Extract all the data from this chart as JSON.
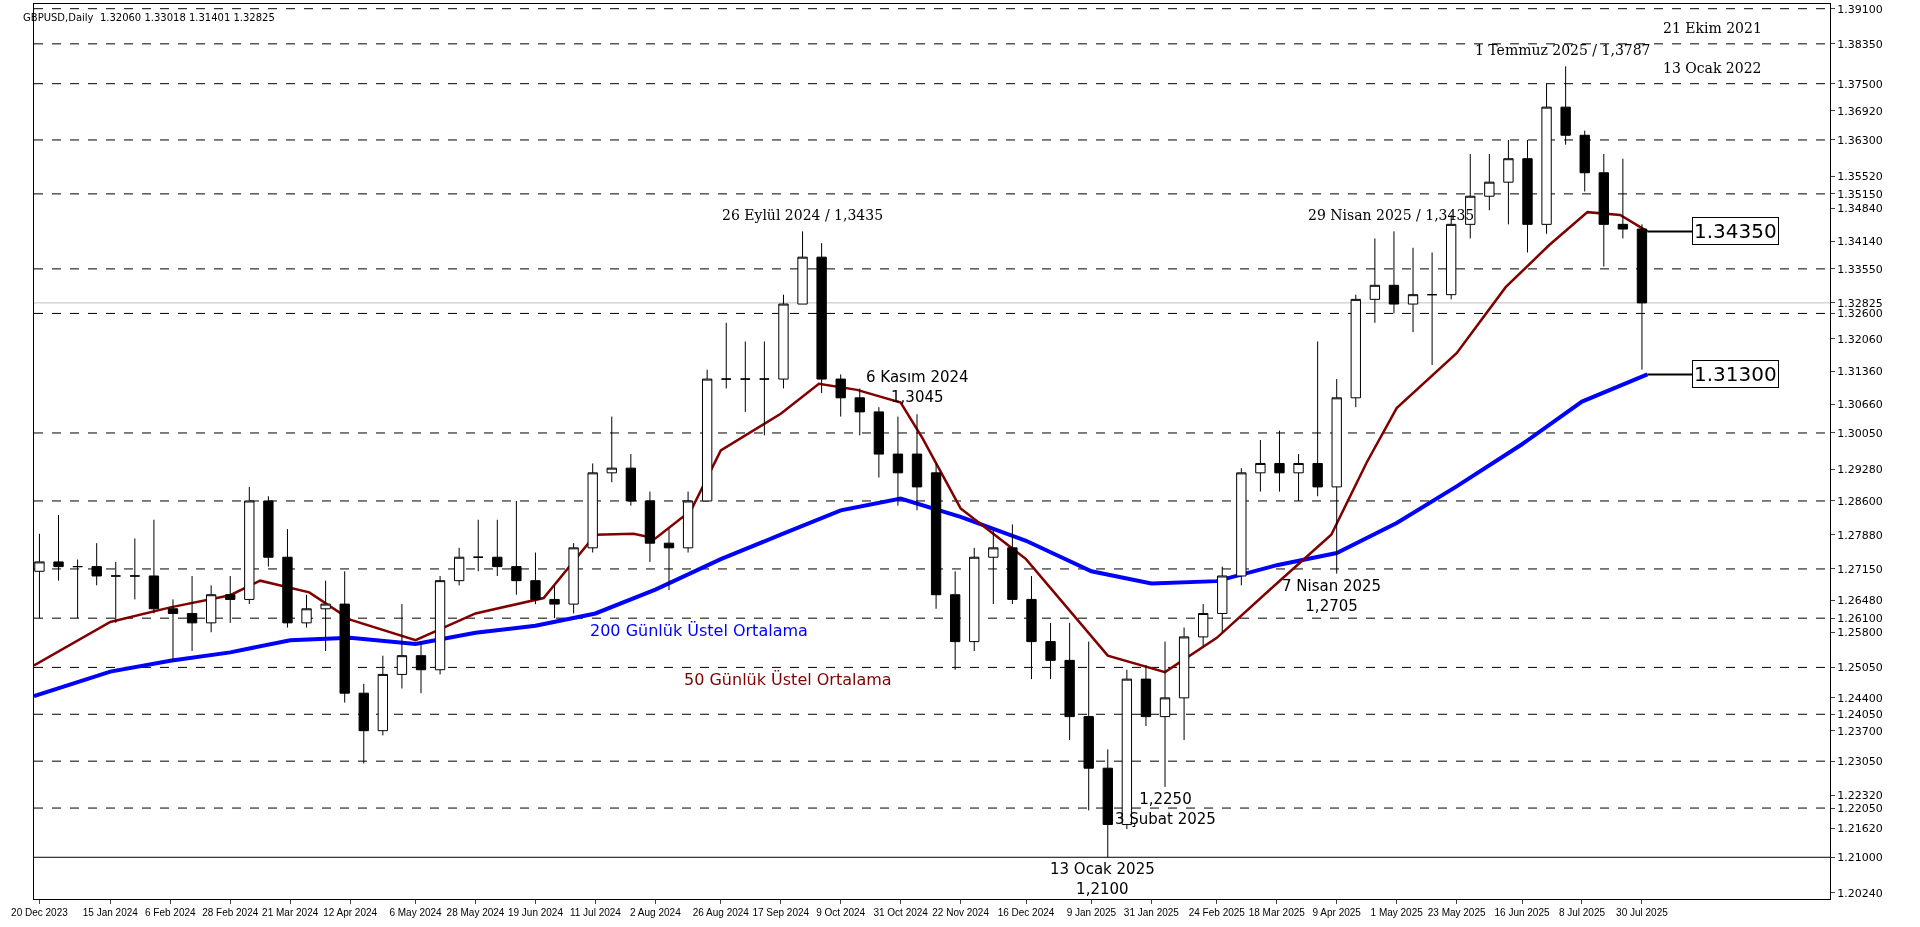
{
  "chart_data": {
    "type": "candlestick",
    "title": "GBPUSD,Daily  1.32060 1.33018 1.31401 1.32825",
    "x": [
      "2023-12-20",
      "2023-12-27",
      "2024-01-03",
      "2024-01-10",
      "2024-01-17",
      "2024-01-24",
      "2024-01-31",
      "2024-02-07",
      "2024-02-14",
      "2024-02-21",
      "2024-02-28",
      "2024-03-06",
      "2024-03-13",
      "2024-03-20",
      "2024-03-27",
      "2024-04-03",
      "2024-04-10",
      "2024-04-17",
      "2024-04-24",
      "2024-05-01",
      "2024-05-08",
      "2024-05-15",
      "2024-05-22",
      "2024-05-29",
      "2024-06-05",
      "2024-06-12",
      "2024-06-19",
      "2024-06-26",
      "2024-07-03",
      "2024-07-10",
      "2024-07-17",
      "2024-07-24",
      "2024-07-31",
      "2024-08-07",
      "2024-08-14",
      "2024-08-21",
      "2024-08-28",
      "2024-09-04",
      "2024-09-11",
      "2024-09-18",
      "2024-09-25",
      "2024-10-02",
      "2024-10-09",
      "2024-10-16",
      "2024-10-23",
      "2024-10-30",
      "2024-11-06",
      "2024-11-13",
      "2024-11-20",
      "2024-11-27",
      "2024-12-04",
      "2024-12-11",
      "2024-12-18",
      "2024-12-25",
      "2025-01-01",
      "2025-01-08",
      "2025-01-15",
      "2025-01-22",
      "2025-01-29",
      "2025-02-05",
      "2025-02-12",
      "2025-02-19",
      "2025-02-26",
      "2025-03-05",
      "2025-03-12",
      "2025-03-19",
      "2025-03-26",
      "2025-04-02",
      "2025-04-09",
      "2025-04-16",
      "2025-04-23",
      "2025-04-30",
      "2025-05-07",
      "2025-05-14",
      "2025-05-21",
      "2025-05-28",
      "2025-06-04",
      "2025-06-11",
      "2025-06-18",
      "2025-06-25",
      "2025-07-02",
      "2025-07-09",
      "2025-07-16",
      "2025-07-23",
      "2025-07-30"
    ],
    "ohlc": [
      [
        1.271,
        1.279,
        1.261,
        1.273
      ],
      [
        1.273,
        1.283,
        1.269,
        1.272
      ],
      [
        1.272,
        1.2735,
        1.261,
        1.272
      ],
      [
        1.272,
        1.277,
        1.268,
        1.27
      ],
      [
        1.27,
        1.273,
        1.26,
        1.27
      ],
      [
        1.27,
        1.278,
        1.265,
        1.27
      ],
      [
        1.27,
        1.282,
        1.262,
        1.263
      ],
      [
        1.263,
        1.265,
        1.252,
        1.262
      ],
      [
        1.262,
        1.27,
        1.254,
        1.26
      ],
      [
        1.26,
        1.268,
        1.258,
        1.266
      ],
      [
        1.266,
        1.27,
        1.26,
        1.265
      ],
      [
        1.265,
        1.289,
        1.264,
        1.286
      ],
      [
        1.286,
        1.287,
        1.272,
        1.274
      ],
      [
        1.274,
        1.28,
        1.259,
        1.26
      ],
      [
        1.26,
        1.266,
        1.259,
        1.263
      ],
      [
        1.263,
        1.269,
        1.254,
        1.264
      ],
      [
        1.264,
        1.271,
        1.243,
        1.245
      ],
      [
        1.245,
        1.247,
        1.23,
        1.237
      ],
      [
        1.237,
        1.253,
        1.236,
        1.249
      ],
      [
        1.249,
        1.264,
        1.246,
        1.253
      ],
      [
        1.253,
        1.256,
        1.245,
        1.25
      ],
      [
        1.25,
        1.27,
        1.249,
        1.269
      ],
      [
        1.269,
        1.276,
        1.268,
        1.274
      ],
      [
        1.274,
        1.282,
        1.271,
        1.274
      ],
      [
        1.274,
        1.282,
        1.27,
        1.272
      ],
      [
        1.272,
        1.286,
        1.266,
        1.269
      ],
      [
        1.269,
        1.275,
        1.264,
        1.265
      ],
      [
        1.265,
        1.268,
        1.261,
        1.264
      ],
      [
        1.264,
        1.277,
        1.262,
        1.276
      ],
      [
        1.276,
        1.294,
        1.275,
        1.292
      ],
      [
        1.292,
        1.304,
        1.29,
        1.293
      ],
      [
        1.293,
        1.296,
        1.285,
        1.286
      ],
      [
        1.286,
        1.288,
        1.273,
        1.277
      ],
      [
        1.277,
        1.28,
        1.267,
        1.276
      ],
      [
        1.276,
        1.288,
        1.275,
        1.286
      ],
      [
        1.286,
        1.314,
        1.286,
        1.312
      ],
      [
        1.312,
        1.324,
        1.31,
        1.312
      ],
      [
        1.312,
        1.32,
        1.305,
        1.312
      ],
      [
        1.312,
        1.32,
        1.3,
        1.312
      ],
      [
        1.312,
        1.33,
        1.31,
        1.328
      ],
      [
        1.328,
        1.3435,
        1.328,
        1.338
      ],
      [
        1.338,
        1.341,
        1.309,
        1.312
      ],
      [
        1.312,
        1.313,
        1.304,
        1.308
      ],
      [
        1.308,
        1.31,
        1.3,
        1.305
      ],
      [
        1.305,
        1.306,
        1.291,
        1.296
      ],
      [
        1.296,
        1.304,
        1.285,
        1.292
      ],
      [
        1.296,
        1.3045,
        1.284,
        1.289
      ],
      [
        1.292,
        1.294,
        1.263,
        1.266
      ],
      [
        1.266,
        1.271,
        1.25,
        1.256
      ],
      [
        1.256,
        1.276,
        1.254,
        1.274
      ],
      [
        1.274,
        1.28,
        1.264,
        1.276
      ],
      [
        1.276,
        1.281,
        1.264,
        1.265
      ],
      [
        1.265,
        1.27,
        1.248,
        1.256
      ],
      [
        1.256,
        1.26,
        1.248,
        1.252
      ],
      [
        1.252,
        1.26,
        1.235,
        1.24
      ],
      [
        1.24,
        1.256,
        1.22,
        1.229
      ],
      [
        1.229,
        1.233,
        1.21,
        1.217
      ],
      [
        1.217,
        1.25,
        1.216,
        1.248
      ],
      [
        1.248,
        1.251,
        1.238,
        1.24
      ],
      [
        1.24,
        1.256,
        1.225,
        1.244
      ],
      [
        1.244,
        1.259,
        1.235,
        1.257
      ],
      [
        1.257,
        1.264,
        1.255,
        1.262
      ],
      [
        1.262,
        1.272,
        1.258,
        1.27
      ],
      [
        1.27,
        1.293,
        1.268,
        1.292
      ],
      [
        1.292,
        1.299,
        1.288,
        1.294
      ],
      [
        1.294,
        1.301,
        1.288,
        1.292
      ],
      [
        1.292,
        1.296,
        1.286,
        1.294
      ],
      [
        1.294,
        1.32,
        1.287,
        1.289
      ],
      [
        1.289,
        1.312,
        1.2705,
        1.308
      ],
      [
        1.308,
        1.33,
        1.306,
        1.329
      ],
      [
        1.329,
        1.342,
        1.324,
        1.332
      ],
      [
        1.332,
        1.3435,
        1.326,
        1.328
      ],
      [
        1.328,
        1.34,
        1.322,
        1.33
      ],
      [
        1.33,
        1.339,
        1.315,
        1.33
      ],
      [
        1.33,
        1.347,
        1.329,
        1.345
      ],
      [
        1.345,
        1.36,
        1.342,
        1.351
      ],
      [
        1.351,
        1.36,
        1.348,
        1.354
      ],
      [
        1.354,
        1.363,
        1.345,
        1.359
      ],
      [
        1.359,
        1.363,
        1.339,
        1.345
      ],
      [
        1.345,
        1.375,
        1.343,
        1.37
      ],
      [
        1.37,
        1.3787,
        1.362,
        1.364
      ],
      [
        1.364,
        1.365,
        1.352,
        1.356
      ],
      [
        1.356,
        1.36,
        1.336,
        1.345
      ],
      [
        1.345,
        1.359,
        1.342,
        1.344
      ],
      [
        1.344,
        1.345,
        1.31401,
        1.32825
      ]
    ],
    "series": [
      {
        "name": "200 Günlük Üstel Ortalama",
        "type": "line",
        "color": "#0000ff",
        "x": [
          "2023-12-18",
          "2024-01-15",
          "2024-02-06",
          "2024-02-28",
          "2024-03-21",
          "2024-04-12",
          "2024-05-06",
          "2024-05-28",
          "2024-06-19",
          "2024-07-11",
          "2024-08-02",
          "2024-08-26",
          "2024-09-17",
          "2024-10-09",
          "2024-10-31",
          "2024-11-22",
          "2024-12-16",
          "2025-01-09",
          "2025-01-31",
          "2025-02-24",
          "2025-03-18",
          "2025-04-09",
          "2025-05-01",
          "2025-05-23",
          "2025-06-16",
          "2025-07-08",
          "2025-08-01"
        ],
        "values": [
          1.2444,
          1.2496,
          1.2519,
          1.2537,
          1.2563,
          1.2568,
          1.2555,
          1.2579,
          1.2594,
          1.262,
          1.2671,
          1.2736,
          1.2788,
          1.284,
          1.2865,
          1.2826,
          1.2775,
          1.271,
          1.2684,
          1.2689,
          1.2723,
          1.2749,
          1.2813,
          1.2891,
          1.2981,
          1.3072,
          1.313
        ]
      },
      {
        "name": "50 Günlük Üstel Ortalama",
        "type": "line",
        "color": "#800000",
        "x": [
          "2023-12-18",
          "2024-01-15",
          "2024-02-06",
          "2024-02-28",
          "2024-03-10",
          "2024-03-28",
          "2024-04-12",
          "2024-05-06",
          "2024-05-28",
          "2024-06-22",
          "2024-07-11",
          "2024-07-25",
          "2024-08-02",
          "2024-08-15",
          "2024-08-26",
          "2024-09-17",
          "2024-10-01",
          "2024-10-15",
          "2024-10-31",
          "2024-11-08",
          "2024-11-22",
          "2024-12-16",
          "2024-12-31",
          "2025-01-15",
          "2025-02-05",
          "2025-02-24",
          "2025-03-18",
          "2025-04-07",
          "2025-04-20",
          "2025-05-01",
          "2025-05-23",
          "2025-06-10",
          "2025-06-26",
          "2025-07-10",
          "2025-07-22",
          "2025-08-01"
        ],
        "values": [
          1.2509,
          1.2602,
          1.2633,
          1.2659,
          1.269,
          1.2665,
          1.2607,
          1.2563,
          1.262,
          1.2653,
          1.2788,
          1.279,
          1.278,
          1.2839,
          1.2968,
          1.3046,
          1.311,
          1.3097,
          1.307,
          1.2994,
          1.2844,
          1.2736,
          1.2633,
          1.253,
          1.2495,
          1.2568,
          1.2684,
          1.2788,
          1.2942,
          1.3058,
          1.3175,
          1.3316,
          1.3406,
          1.3476,
          1.347,
          1.3435
        ]
      }
    ],
    "xlim": [
      "2023-12-18",
      "2025-10-07"
    ],
    "xticks": [
      {
        "value": "2023-12-20",
        "label": "20 Dec 2023"
      },
      {
        "value": "2024-01-15",
        "label": "15 Jan 2024"
      },
      {
        "value": "2024-02-06",
        "label": "6 Feb 2024"
      },
      {
        "value": "2024-02-28",
        "label": "28 Feb 2024"
      },
      {
        "value": "2024-03-21",
        "label": "21 Mar 2024"
      },
      {
        "value": "2024-04-12",
        "label": "12 Apr 2024"
      },
      {
        "value": "2024-05-06",
        "label": "6 May 2024"
      },
      {
        "value": "2024-05-28",
        "label": "28 May 2024"
      },
      {
        "value": "2024-06-19",
        "label": "19 Jun 2024"
      },
      {
        "value": "2024-07-11",
        "label": "11 Jul 2024"
      },
      {
        "value": "2024-08-02",
        "label": "2 Aug 2024"
      },
      {
        "value": "2024-08-26",
        "label": "26 Aug 2024"
      },
      {
        "value": "2024-09-17",
        "label": "17 Sep 2024"
      },
      {
        "value": "2024-10-09",
        "label": "9 Oct 2024"
      },
      {
        "value": "2024-10-31",
        "label": "31 Oct 2024"
      },
      {
        "value": "2024-11-22",
        "label": "22 Nov 2024"
      },
      {
        "value": "2024-12-16",
        "label": "16 Dec 2024"
      },
      {
        "value": "2025-01-09",
        "label": "9 Jan 2025"
      },
      {
        "value": "2025-01-31",
        "label": "31 Jan 2025"
      },
      {
        "value": "2025-02-24",
        "label": "24 Feb 2025"
      },
      {
        "value": "2025-03-18",
        "label": "18 Mar 2025"
      },
      {
        "value": "2025-04-09",
        "label": "9 Apr 2025"
      },
      {
        "value": "2025-05-01",
        "label": "1 May 2025"
      },
      {
        "value": "2025-05-23",
        "label": "23 May 2025"
      },
      {
        "value": "2025-06-16",
        "label": "16 Jun 2025"
      },
      {
        "value": "2025-07-08",
        "label": "8 Jul 2025"
      },
      {
        "value": "2025-07-30",
        "label": "30 Jul 2025"
      }
    ],
    "ylim": [
      1.2011,
      1.392
    ],
    "yticks": [
      {
        "value": 1.391,
        "label": "1.39100"
      },
      {
        "value": 1.3835,
        "label": "1.38350"
      },
      {
        "value": 1.375,
        "label": "1.37500"
      },
      {
        "value": 1.3692,
        "label": "1.36920"
      },
      {
        "value": 1.363,
        "label": "1.36300"
      },
      {
        "value": 1.3552,
        "label": "1.35520"
      },
      {
        "value": 1.3515,
        "label": "1.35150"
      },
      {
        "value": 1.3484,
        "label": "1.34840"
      },
      {
        "value": 1.3414,
        "label": "1.34140"
      },
      {
        "value": 1.3355,
        "label": "1.33550"
      },
      {
        "value": 1.32825,
        "label": "1.32825"
      },
      {
        "value": 1.326,
        "label": "1.32600"
      },
      {
        "value": 1.3206,
        "label": "1.32060"
      },
      {
        "value": 1.3136,
        "label": "1.31360"
      },
      {
        "value": 1.3066,
        "label": "1.30660"
      },
      {
        "value": 1.3005,
        "label": "1.30050"
      },
      {
        "value": 1.2928,
        "label": "1.29280"
      },
      {
        "value": 1.286,
        "label": "1.28600"
      },
      {
        "value": 1.2788,
        "label": "1.27880"
      },
      {
        "value": 1.2715,
        "label": "1.27150"
      },
      {
        "value": 1.2648,
        "label": "1.26480"
      },
      {
        "value": 1.261,
        "label": "1.26100"
      },
      {
        "value": 1.258,
        "label": "1.25800"
      },
      {
        "value": 1.2505,
        "label": "1.25050"
      },
      {
        "value": 1.244,
        "label": "1.24400"
      },
      {
        "value": 1.2405,
        "label": "1.24050"
      },
      {
        "value": 1.237,
        "label": "1.23700"
      },
      {
        "value": 1.2305,
        "label": "1.23050"
      },
      {
        "value": 1.2232,
        "label": "1.22320"
      },
      {
        "value": 1.2205,
        "label": "1.22050"
      },
      {
        "value": 1.2162,
        "label": "1.21620"
      },
      {
        "value": 1.21,
        "label": "1.21000"
      },
      {
        "value": 1.2024,
        "label": "1.20240"
      }
    ],
    "ref_lines": [
      {
        "axis": "y",
        "value": 1.391,
        "color": "#000000",
        "line_style": "dashed"
      },
      {
        "axis": "y",
        "value": 1.3835,
        "color": "#000000",
        "line_style": "dashed"
      },
      {
        "axis": "y",
        "value": 1.375,
        "color": "#000000",
        "line_style": "dashed"
      },
      {
        "axis": "y",
        "value": 1.363,
        "color": "#000000",
        "line_style": "dashed"
      },
      {
        "axis": "y",
        "value": 1.3515,
        "color": "#000000",
        "line_style": "dashed"
      },
      {
        "axis": "y",
        "value": 1.3355,
        "color": "#000000",
        "line_style": "dashed"
      },
      {
        "axis": "y",
        "value": 1.32825,
        "color": "#c0c0c0",
        "line_style": "solid"
      },
      {
        "axis": "y",
        "value": 1.326,
        "color": "#000000",
        "line_style": "dashed"
      },
      {
        "axis": "y",
        "value": 1.3005,
        "color": "#000000",
        "line_style": "dashed"
      },
      {
        "axis": "y",
        "value": 1.286,
        "color": "#000000",
        "line_style": "dashed"
      },
      {
        "axis": "y",
        "value": 1.2715,
        "color": "#000000",
        "line_style": "dashed"
      },
      {
        "axis": "y",
        "value": 1.261,
        "color": "#000000",
        "line_style": "dashed"
      },
      {
        "axis": "y",
        "value": 1.2505,
        "color": "#000000",
        "line_style": "dashed"
      },
      {
        "axis": "y",
        "value": 1.2405,
        "color": "#000000",
        "line_style": "dashed"
      },
      {
        "axis": "y",
        "value": 1.2305,
        "color": "#000000",
        "line_style": "dashed"
      },
      {
        "axis": "y",
        "value": 1.2205,
        "color": "#000000",
        "line_style": "dashed"
      },
      {
        "axis": "y",
        "value": 1.21,
        "color": "#000000",
        "line_style": "solid"
      }
    ],
    "annotations": [
      {
        "text": "26 Eylül 2024 / 1,3435",
        "x": "2024-09-25",
        "y": 1.3435
      },
      {
        "text": "6 Kasım 2024\n1,3045",
        "x": "2024-11-06",
        "y": 1.3045
      },
      {
        "text": "13 Ocak 2025\n1,2100",
        "x": "2025-01-13",
        "y": 1.21
      },
      {
        "text": "1,2250\n3 Şubat 2025",
        "x": "2025-02-05",
        "y": 1.225
      },
      {
        "text": "7 Nisan 2025\n1,2705",
        "x": "2025-04-07",
        "y": 1.2705
      },
      {
        "text": "29 Nisan 2025 / 1,3435",
        "x": "2025-04-29",
        "y": 1.3435
      },
      {
        "text": "1 Temmuz 2025 / 1,3787",
        "x": "2025-07-01",
        "y": 1.3787
      },
      {
        "text": "21 Ekim 2021",
        "x": "2025-08-25",
        "y": 1.3835
      },
      {
        "text": "13 Ocak 2022",
        "x": "2025-08-25",
        "y": 1.375
      },
      {
        "text": "1.34350",
        "x": "2025-08-01",
        "y": 1.3435
      },
      {
        "text": "1.31300",
        "x": "2025-08-01",
        "y": 1.313
      }
    ],
    "grid": false,
    "legend": false,
    "marker": "none",
    "line_style": "solid"
  }
}
